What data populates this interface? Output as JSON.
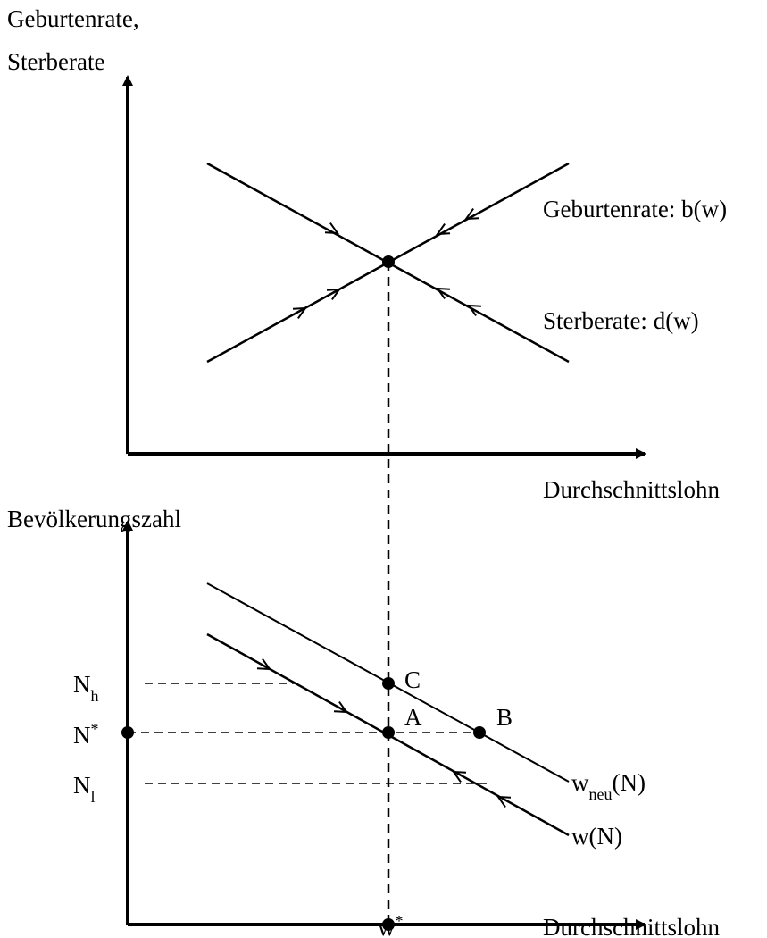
{
  "top_panel": {
    "y_axis_label": [
      "Geburtenrate,",
      "Sterberate"
    ],
    "x_axis_label": "Durchschnittslohn",
    "curves": [
      {
        "label": "Geburtenrate: b(w)"
      },
      {
        "label": "Sterberate: d(w)"
      }
    ]
  },
  "bottom_panel": {
    "y_axis_label": "Bevölkerungszahl",
    "x_axis_label": "Durchschnittslohn",
    "y_labels": [
      {
        "base": "N",
        "sub": "h"
      },
      {
        "base": "N",
        "sup": "*"
      },
      {
        "base": "N",
        "sub": "l"
      }
    ],
    "x_label": {
      "base": "w",
      "sup": "*"
    },
    "points": [
      "C",
      "A",
      "B"
    ],
    "curves": [
      {
        "base": "w",
        "sub": "neu",
        "rest": "(N)"
      },
      {
        "base": "w(N)"
      }
    ]
  }
}
